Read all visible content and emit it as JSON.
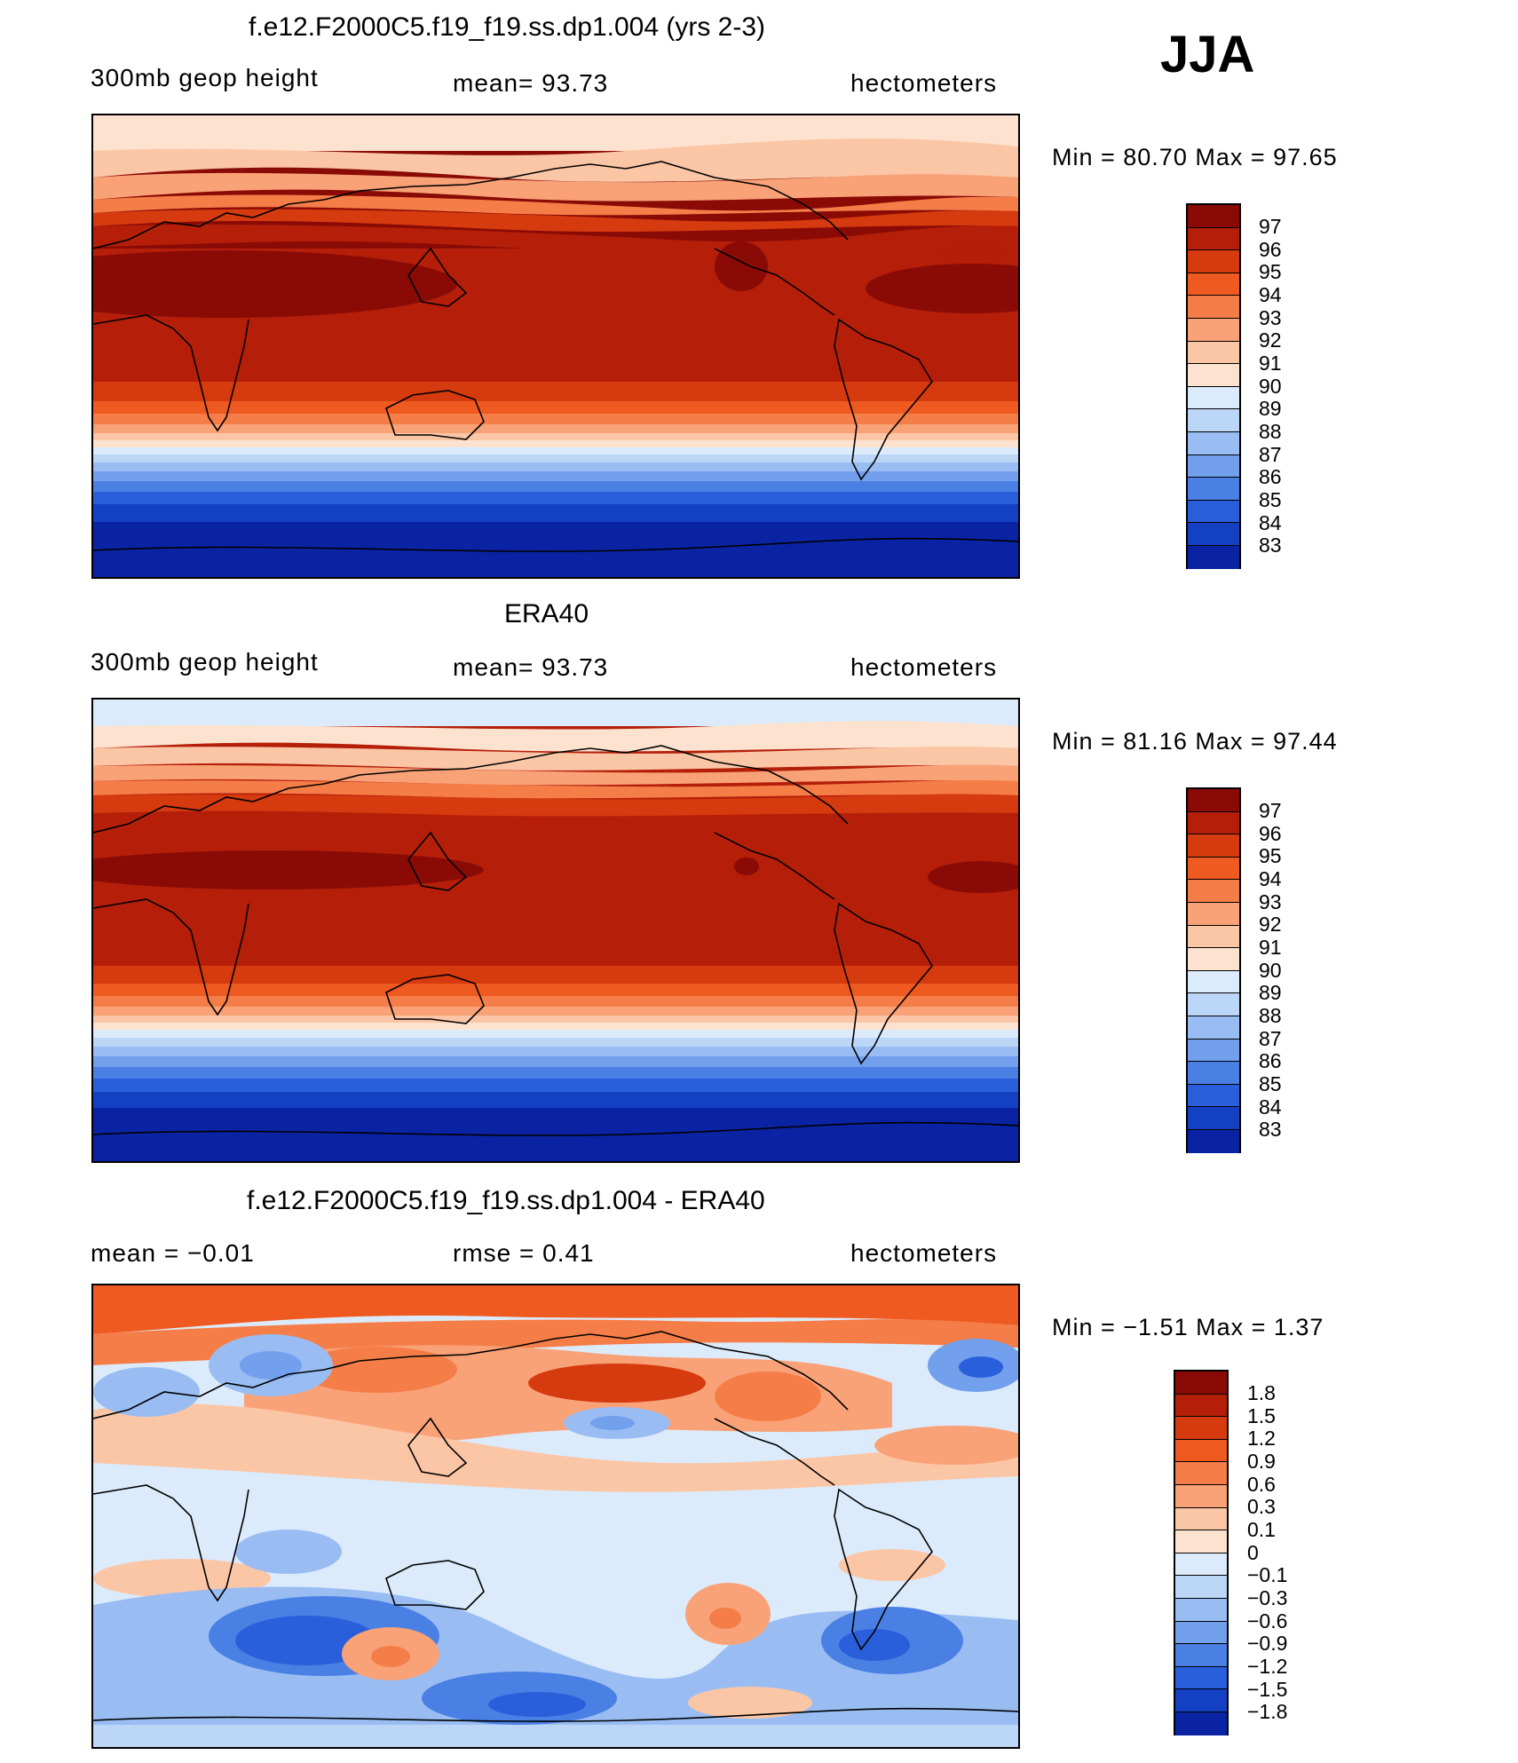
{
  "season": "JJA",
  "panels": [
    {
      "title": "f.e12.F2000C5.f19_f19.ss.dp1.004 (yrs 2-3)",
      "left_label": "300mb  geop  height",
      "center_label": "mean=   93.73",
      "right_label": "hectometers",
      "min_max": "Min  =    80.70  Max  =    97.65",
      "colorbar_labels": [
        "97",
        "96",
        "95",
        "94",
        "93",
        "92",
        "91",
        "90",
        "89",
        "88",
        "87",
        "86",
        "85",
        "84",
        "83"
      ],
      "colorbar_colors": [
        "#8a0b06",
        "#b51f0a",
        "#d63a0f",
        "#ee5a20",
        "#f57d48",
        "#f9a278",
        "#fbc6a6",
        "#fde3cf",
        "#dcebfb",
        "#bcd6f8",
        "#99bdf3",
        "#72a0ec",
        "#4a80e4",
        "#2a5fdb",
        "#1440c4",
        "#0a23a3"
      ]
    },
    {
      "title": "ERA40",
      "left_label": "300mb  geop  height",
      "center_label": "mean=   93.73",
      "right_label": "hectometers",
      "min_max": "Min  =    81.16  Max  =    97.44",
      "colorbar_labels": [
        "97",
        "96",
        "95",
        "94",
        "93",
        "92",
        "91",
        "90",
        "89",
        "88",
        "87",
        "86",
        "85",
        "84",
        "83"
      ],
      "colorbar_colors": [
        "#8a0b06",
        "#b51f0a",
        "#d63a0f",
        "#ee5a20",
        "#f57d48",
        "#f9a278",
        "#fbc6a6",
        "#fde3cf",
        "#dcebfb",
        "#bcd6f8",
        "#99bdf3",
        "#72a0ec",
        "#4a80e4",
        "#2a5fdb",
        "#1440c4",
        "#0a23a3"
      ]
    },
    {
      "title": "f.e12.F2000C5.f19_f19.ss.dp1.004 - ERA40",
      "left_label": "mean  =    −0.01",
      "center_label": "rmse  =     0.41",
      "right_label": "hectometers",
      "min_max": "Min  =   −1.51  Max  =     1.37",
      "colorbar_labels": [
        "1.8",
        "1.5",
        "1.2",
        "0.9",
        "0.6",
        "0.3",
        "0.1",
        "0",
        "−0.1",
        "−0.3",
        "−0.6",
        "−0.9",
        "−1.2",
        "−1.5",
        "−1.8"
      ],
      "colorbar_colors": [
        "#8a0b06",
        "#b51f0a",
        "#d63a0f",
        "#ee5a20",
        "#f57d48",
        "#f9a278",
        "#fbc6a6",
        "#fde3cf",
        "#dcebfb",
        "#bcd6f8",
        "#99bdf3",
        "#72a0ec",
        "#4a80e4",
        "#2a5fdb",
        "#1440c4",
        "#0a23a3"
      ]
    }
  ]
}
